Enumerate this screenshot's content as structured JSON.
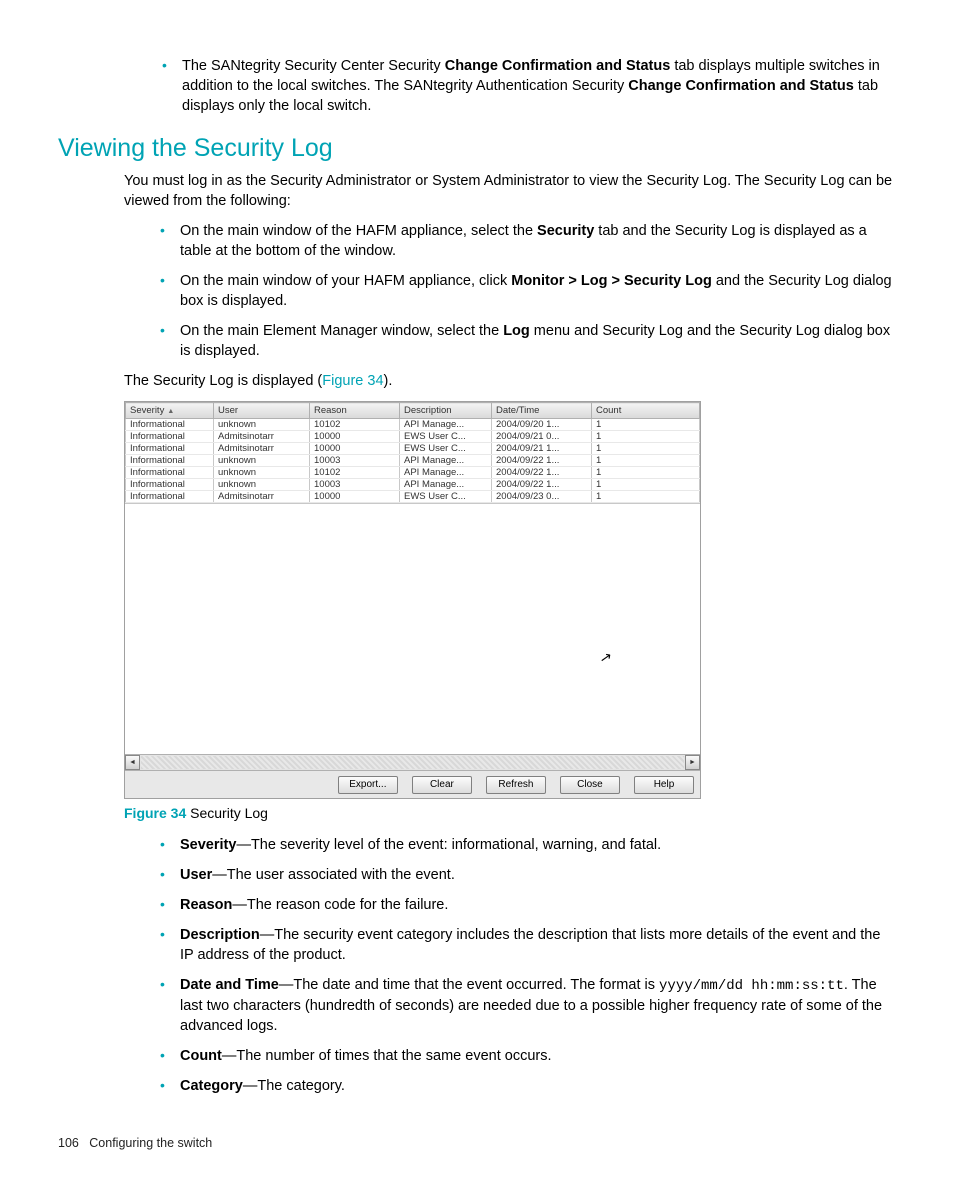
{
  "intro_bullet": {
    "pre": "The SANtegrity Security Center Security ",
    "b1": "Change Confirmation and Status",
    "mid": " tab displays multiple switches in addition to the local switches. The SANtegrity Authentication Security ",
    "b2": "Change Confirmation and Status",
    "post": " tab displays only the local switch."
  },
  "heading": "Viewing the Security Log",
  "intro_para": "You must log in as the Security Administrator or System Administrator to view the Security Log. The Security Log can be viewed from the following:",
  "view_bullets": {
    "b1_pre": "On the main window of the HAFM appliance, select the ",
    "b1_bold": "Security",
    "b1_post": " tab and the Security Log is displayed as a table at the bottom of the window.",
    "b2_pre": "On the main window of your HAFM appliance, click ",
    "b2_bold": "Monitor > Log > Security Log",
    "b2_post": " and the Security Log dialog box is displayed.",
    "b3_pre": "On the main Element Manager window, select the ",
    "b3_bold": "Log",
    "b3_post": " menu and Security Log and the Security Log dialog box is displayed."
  },
  "displayed_para_pre": "The Security Log is displayed (",
  "displayed_para_link": "Figure 34",
  "displayed_para_post": ").",
  "log": {
    "columns": [
      "Severity",
      "User",
      "Reason",
      "Description",
      "Date/Time",
      "Count"
    ],
    "rows": [
      [
        "Informational",
        "unknown",
        "10102",
        "API Manage...",
        "2004/09/20 1...",
        "1"
      ],
      [
        "Informational",
        "Admitsinotarr",
        "10000",
        "EWS User C...",
        "2004/09/21 0...",
        "1"
      ],
      [
        "Informational",
        "Admitsinotarr",
        "10000",
        "EWS User C...",
        "2004/09/21 1...",
        "1"
      ],
      [
        "Informational",
        "unknown",
        "10003",
        "API Manage...",
        "2004/09/22 1...",
        "1"
      ],
      [
        "Informational",
        "unknown",
        "10102",
        "API Manage...",
        "2004/09/22 1...",
        "1"
      ],
      [
        "Informational",
        "unknown",
        "10003",
        "API Manage...",
        "2004/09/22 1...",
        "1"
      ],
      [
        "Informational",
        "Admitsinotarr",
        "10000",
        "EWS User C...",
        "2004/09/23 0...",
        "1"
      ]
    ],
    "buttons": {
      "export": "Export...",
      "clear": "Clear",
      "refresh": "Refresh",
      "close": "Close",
      "help": "Help"
    }
  },
  "caption": {
    "num": "Figure 34",
    "text": " Security Log"
  },
  "fields": {
    "severity_b": "Severity",
    "severity_t": "—The severity level of the event: informational, warning, and fatal.",
    "user_b": "User",
    "user_t": "—The user associated with the event.",
    "reason_b": "Reason",
    "reason_t": "—The reason code for the failure.",
    "desc_b": "Description",
    "desc_t": "—The security event category includes the description that lists more details of the event and the IP address of the product.",
    "datetime_b": "Date and Time",
    "datetime_t1": "—The date and time that the event occurred. The format is ",
    "datetime_code": "yyyy/mm/dd hh:mm:ss:tt",
    "datetime_t2": ". The last two characters (hundredth of seconds) are needed due to a possible higher frequency rate of some of the advanced logs.",
    "count_b": "Count",
    "count_t": "—The number of times that the same event occurs.",
    "category_b": "Category",
    "category_t": "—The category."
  },
  "footer": {
    "page": "106",
    "section": "Configuring the switch"
  }
}
